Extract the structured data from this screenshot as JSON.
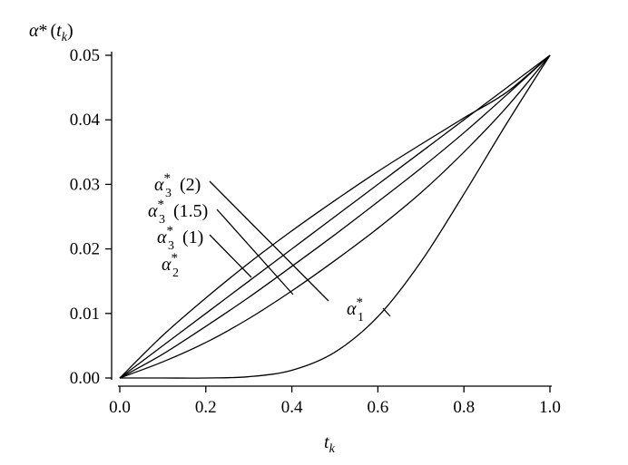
{
  "chart_data": {
    "type": "line",
    "title": "",
    "xlabel_main": "t",
    "xlabel_sub": "k",
    "ylabel": {
      "symbol": "α",
      "sup": "*",
      "open": "(",
      "arg": "t",
      "arg_sub": "k",
      "close": ")"
    },
    "xlim": [
      0.0,
      1.0
    ],
    "ylim": [
      0.0,
      0.05
    ],
    "x_ticks": [
      0.0,
      0.2,
      0.4,
      0.6,
      0.8,
      1.0
    ],
    "x_tick_labels": [
      "0.0",
      "0.2",
      "0.4",
      "0.6",
      "0.8",
      "1.0"
    ],
    "y_ticks": [
      0.0,
      0.01,
      0.02,
      0.03,
      0.04,
      0.05
    ],
    "y_tick_labels": [
      "0.00",
      "0.01",
      "0.02",
      "0.03",
      "0.04",
      "0.05"
    ],
    "grid": false,
    "legend": "none (inline labels with leader lines)",
    "x": [
      0.0,
      0.1,
      0.2,
      0.3,
      0.4,
      0.5,
      0.6,
      0.7,
      0.8,
      0.9,
      1.0
    ],
    "series": [
      {
        "label_sub": "2",
        "label_arg": "",
        "values": [
          0.0,
          0.0066,
          0.0124,
          0.0178,
          0.0228,
          0.0275,
          0.032,
          0.0362,
          0.0403,
          0.0443,
          0.05
        ]
      },
      {
        "label_sub": "3",
        "label_arg": "(1)",
        "values": [
          0.0,
          0.005,
          0.01,
          0.015,
          0.02,
          0.025,
          0.03,
          0.035,
          0.04,
          0.045,
          0.05
        ]
      },
      {
        "label_sub": "3",
        "label_arg": "(1.5)",
        "values": [
          0.0,
          0.0037,
          0.008,
          0.0125,
          0.0173,
          0.0222,
          0.0273,
          0.0325,
          0.038,
          0.0439,
          0.05
        ]
      },
      {
        "label_sub": "3",
        "label_arg": "(2)",
        "values": [
          0.0,
          0.0025,
          0.0055,
          0.0092,
          0.0135,
          0.0182,
          0.0232,
          0.0287,
          0.035,
          0.042,
          0.05
        ]
      },
      {
        "label_sub": "1",
        "label_arg": "",
        "values": [
          0.0,
          0.0,
          0.0,
          0.0002,
          0.0012,
          0.004,
          0.0095,
          0.018,
          0.0285,
          0.0395,
          0.05
        ]
      }
    ]
  }
}
